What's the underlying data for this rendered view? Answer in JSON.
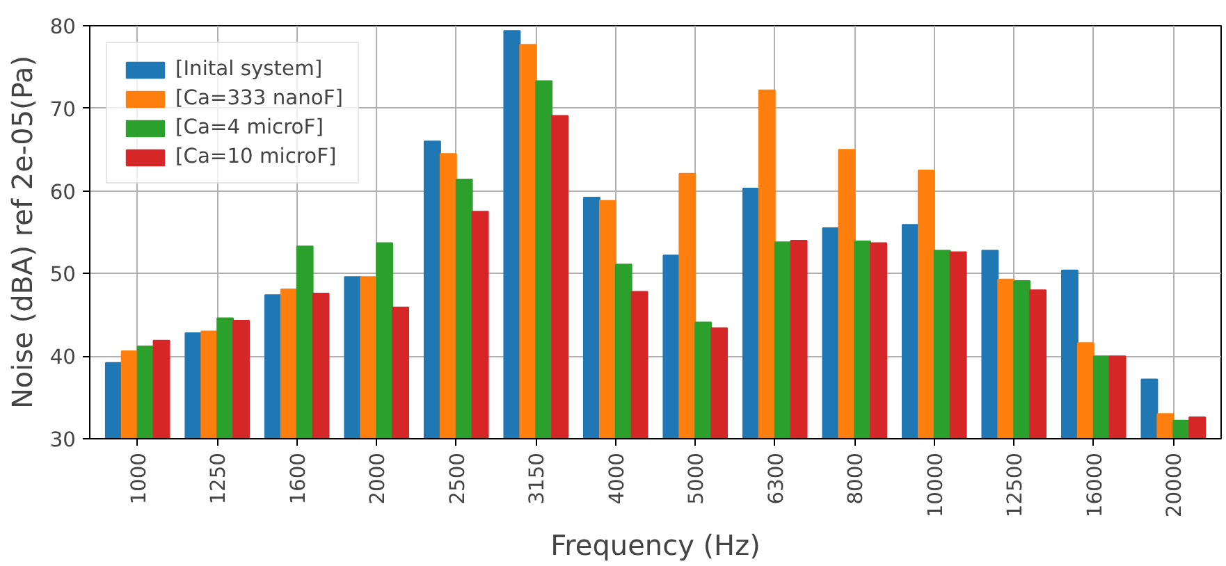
{
  "chart_data": {
    "type": "bar",
    "xlabel": "Frequency (Hz)",
    "ylabel": "Noise (dBA) ref 2e-05(Pa)",
    "categories": [
      "1000",
      "1250",
      "1600",
      "2000",
      "2500",
      "3150",
      "4000",
      "5000",
      "6300",
      "8000",
      "10000",
      "12500",
      "16000",
      "20000"
    ],
    "series": [
      {
        "name": "[Inital system]",
        "color": "#1f77b4",
        "values": [
          39.2,
          42.8,
          47.4,
          49.6,
          66.0,
          79.4,
          59.2,
          52.2,
          60.3,
          55.5,
          55.9,
          52.8,
          50.4,
          37.2
        ]
      },
      {
        "name": "[Ca=333 nanoF]",
        "color": "#ff7f0e",
        "values": [
          40.6,
          43.0,
          48.1,
          49.6,
          64.5,
          77.7,
          58.8,
          62.1,
          72.2,
          65.0,
          62.5,
          49.3,
          41.6,
          33.0
        ]
      },
      {
        "name": "[Ca=4 microF]",
        "color": "#2ca02c",
        "values": [
          41.2,
          44.6,
          53.3,
          53.7,
          61.4,
          73.3,
          51.1,
          44.1,
          53.8,
          53.9,
          52.8,
          49.1,
          40.0,
          32.2
        ]
      },
      {
        "name": "[Ca=10 microF]",
        "color": "#d62728",
        "values": [
          41.9,
          44.3,
          47.6,
          45.9,
          57.5,
          69.1,
          47.8,
          43.4,
          54.0,
          53.7,
          52.6,
          48.0,
          40.0,
          32.6
        ]
      }
    ],
    "ylim": [
      30,
      80
    ],
    "yticks": [
      30,
      40,
      50,
      60,
      70,
      80
    ],
    "grid": true,
    "legend": "top left"
  }
}
